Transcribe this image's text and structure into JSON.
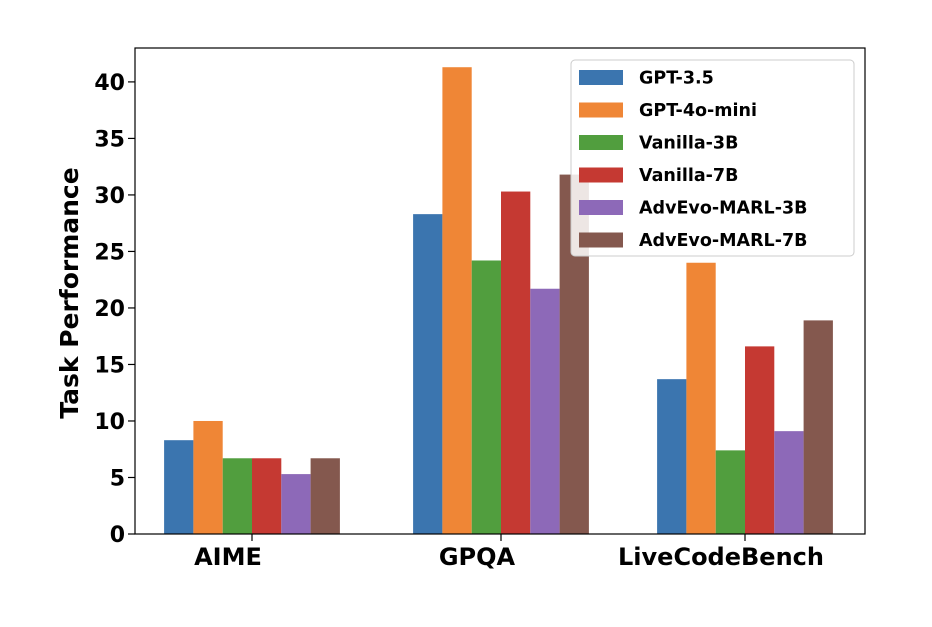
{
  "chart_data": {
    "type": "bar",
    "title": "",
    "xlabel": "",
    "ylabel": "Task Performance",
    "ylim": [
      0,
      43
    ],
    "yticks": [
      0,
      5,
      10,
      15,
      20,
      25,
      30,
      35,
      40
    ],
    "categories": [
      "AIME",
      "GPQA",
      "LiveCodeBench"
    ],
    "grid": false,
    "legend_position": "top-right",
    "series": [
      {
        "name": "GPT-3.5",
        "color": "#3b75af",
        "values": [
          8.3,
          28.3,
          13.7
        ]
      },
      {
        "name": "GPT-4o-mini",
        "color": "#ef8636",
        "values": [
          10.0,
          41.3,
          24.0
        ]
      },
      {
        "name": "Vanilla-3B",
        "color": "#519e3e",
        "values": [
          6.7,
          24.2,
          7.4
        ]
      },
      {
        "name": "Vanilla-7B",
        "color": "#c53932",
        "values": [
          6.7,
          30.3,
          16.6
        ]
      },
      {
        "name": "AdvEvo-MARL-3B",
        "color": "#8d69b8",
        "values": [
          5.3,
          21.7,
          9.1
        ]
      },
      {
        "name": "AdvEvo-MARL-7B",
        "color": "#84584e",
        "values": [
          6.7,
          31.8,
          18.9
        ]
      }
    ]
  }
}
